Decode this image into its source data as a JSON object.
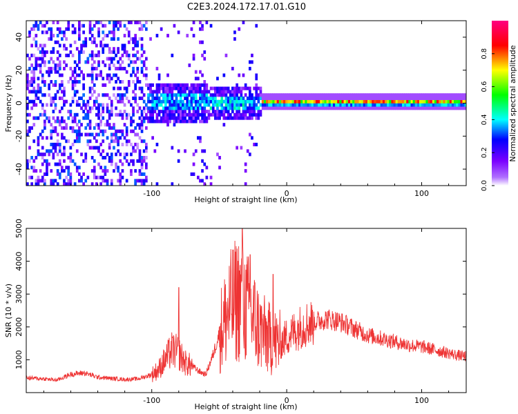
{
  "title": "C2E3.2024.172.17.01.G10",
  "chart_data": [
    {
      "type": "heatmap",
      "xlabel": "Height of straight line (km)",
      "ylabel": "Frequency (Hz)",
      "xlim": [
        -193,
        133
      ],
      "ylim": [
        -50,
        50
      ],
      "x_ticks": [
        -100,
        0,
        100
      ],
      "x_tick_labels": [
        "-100",
        "0",
        "100"
      ],
      "y_ticks": [
        -40,
        -20,
        0,
        20,
        40
      ],
      "y_tick_labels": [
        "-40",
        "-20",
        "0",
        "20",
        "40"
      ],
      "colorbar": {
        "label": "Normalized spectral amplitude",
        "range": [
          0,
          1
        ],
        "ticks": [
          0,
          0.2,
          0.4,
          0.6,
          0.8
        ],
        "tick_labels": [
          "0.0",
          "0.2",
          "0.4",
          "0.6",
          "0.8"
        ]
      },
      "colormap": [
        "#ffffff",
        "#7a00ff",
        "#0000ff",
        "#00ffff",
        "#00ff00",
        "#ffff00",
        "#ff0000",
        "#ff0080"
      ],
      "regions": [
        {
          "x": [
            -193,
            -105
          ],
          "freq": [
            -50,
            50
          ],
          "amplitude": 0.12
        },
        {
          "x": [
            -105,
            -20
          ],
          "freq": [
            -12,
            12
          ],
          "amplitude": 0.25
        },
        {
          "x": [
            -20,
            133
          ],
          "freq": [
            -2,
            2
          ],
          "amplitude": 0.75
        }
      ],
      "grid": false
    },
    {
      "type": "line",
      "xlabel": "Height of straight line (km)",
      "ylabel": "SNR (10 * v/v)",
      "xlim": [
        -193,
        133
      ],
      "ylim": [
        0,
        5000
      ],
      "x_ticks": [
        -100,
        0,
        100
      ],
      "x_tick_labels": [
        "-100",
        "0",
        "100"
      ],
      "y_ticks": [
        1000,
        2000,
        3000,
        4000,
        5000
      ],
      "y_tick_labels": [
        "1000",
        "2000",
        "3000",
        "4000",
        "5000"
      ],
      "series": [
        {
          "color": "#ee3333",
          "x": [
            -193,
            -180,
            -170,
            -160,
            -150,
            -140,
            -130,
            -120,
            -110,
            -100,
            -95,
            -90,
            -85,
            -80,
            -75,
            -70,
            -65,
            -60,
            -55,
            -50,
            -45,
            -40,
            -35,
            -30,
            -25,
            -20,
            -15,
            -10,
            -5,
            0,
            5,
            10,
            15,
            20,
            25,
            30,
            35,
            40,
            45,
            50,
            55,
            60,
            65,
            70,
            75,
            80,
            85,
            90,
            95,
            100,
            105,
            110,
            115,
            120,
            125,
            133
          ],
          "values": [
            450,
            420,
            380,
            560,
            600,
            470,
            430,
            400,
            420,
            550,
            700,
            1000,
            1300,
            1200,
            900,
            800,
            650,
            550,
            1100,
            1800,
            2300,
            2700,
            2900,
            2600,
            2300,
            1900,
            1700,
            1550,
            1500,
            1700,
            1850,
            2000,
            2100,
            2150,
            2200,
            2250,
            2200,
            2150,
            2050,
            1950,
            1850,
            1750,
            1700,
            1650,
            1600,
            1550,
            1500,
            1450,
            1420,
            1400,
            1350,
            1300,
            1250,
            1200,
            1150,
            1100
          ],
          "peaks": [
            {
              "x": -80,
              "y": 3200
            },
            {
              "x": -33,
              "y": 5000
            },
            {
              "x": -27,
              "y": 4200
            },
            {
              "x": -10,
              "y": 3600
            }
          ]
        }
      ],
      "grid": false
    }
  ]
}
